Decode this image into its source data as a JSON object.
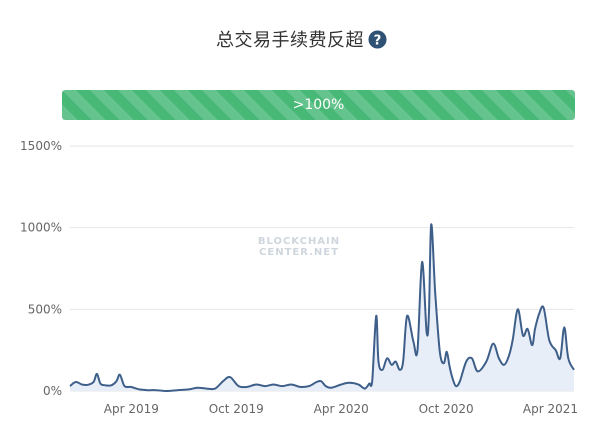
{
  "header": {
    "title": "总交易手续费反超"
  },
  "progress": {
    "label": ">100%",
    "value_percent": 100
  },
  "watermark": {
    "line1": "BLOCKCHAIN",
    "line2": "CENTER.NET"
  },
  "colors": {
    "line": "#3e5f8a",
    "area": "#e8eef7",
    "progress": "#48b877",
    "grid": "#e6e6e6"
  },
  "chart_data": {
    "type": "area",
    "title": "总交易手续费反超",
    "xlabel": "",
    "ylabel": "",
    "ylim": [
      0,
      1500
    ],
    "yticks": [
      0,
      500,
      1000,
      1500
    ],
    "ytick_labels": [
      "0%",
      "500%",
      "1000%",
      "1500%"
    ],
    "xticks": [
      "2019-04",
      "2019-10",
      "2020-04",
      "2020-10",
      "2021-04"
    ],
    "xtick_labels": [
      "Apr 2019",
      "Oct 2019",
      "Apr 2020",
      "Oct 2020",
      "Apr 2021"
    ],
    "xlim": [
      "2018-12-15",
      "2021-05-12"
    ],
    "series": [
      {
        "x": [
          "2018-12-15",
          "2018-12-25",
          "2019-01-05",
          "2019-01-15",
          "2019-01-25",
          "2019-01-31",
          "2019-02-06",
          "2019-02-15",
          "2019-02-25",
          "2019-03-06",
          "2019-03-12",
          "2019-03-20",
          "2019-03-31",
          "2019-04-15",
          "2019-05-01",
          "2019-05-15",
          "2019-06-01",
          "2019-06-20",
          "2019-07-10",
          "2019-07-25",
          "2019-08-10",
          "2019-08-25",
          "2019-09-08",
          "2019-09-20",
          "2019-10-05",
          "2019-10-20",
          "2019-11-05",
          "2019-11-20",
          "2019-12-05",
          "2019-12-20",
          "2020-01-05",
          "2020-01-20",
          "2020-02-05",
          "2020-02-18",
          "2020-02-26",
          "2020-03-05",
          "2020-03-15",
          "2020-04-01",
          "2020-04-15",
          "2020-05-01",
          "2020-05-12",
          "2020-05-20",
          "2020-05-25",
          "2020-06-01",
          "2020-06-05",
          "2020-06-12",
          "2020-06-20",
          "2020-06-28",
          "2020-07-05",
          "2020-07-12",
          "2020-07-18",
          "2020-07-25",
          "2020-08-05",
          "2020-08-12",
          "2020-08-20",
          "2020-08-28",
          "2020-09-01",
          "2020-09-05",
          "2020-09-12",
          "2020-09-20",
          "2020-09-27",
          "2020-10-02",
          "2020-10-07",
          "2020-10-12",
          "2020-10-18",
          "2020-10-25",
          "2020-11-05",
          "2020-11-15",
          "2020-11-25",
          "2020-12-10",
          "2020-12-22",
          "2021-01-01",
          "2021-01-10",
          "2021-01-18",
          "2021-01-25",
          "2021-02-03",
          "2021-02-12",
          "2021-02-20",
          "2021-02-28",
          "2021-03-05",
          "2021-03-12",
          "2021-03-20",
          "2021-03-30",
          "2021-04-10",
          "2021-04-18",
          "2021-04-25",
          "2021-05-02",
          "2021-05-12"
        ],
        "y": [
          30,
          55,
          40,
          38,
          55,
          105,
          45,
          35,
          35,
          60,
          100,
          30,
          25,
          10,
          5,
          5,
          0,
          5,
          10,
          20,
          15,
          15,
          60,
          85,
          30,
          25,
          40,
          30,
          40,
          30,
          40,
          25,
          30,
          55,
          60,
          30,
          20,
          40,
          50,
          40,
          15,
          45,
          60,
          460,
          180,
          130,
          200,
          160,
          180,
          130,
          180,
          460,
          300,
          250,
          790,
          360,
          470,
          1020,
          600,
          240,
          170,
          240,
          150,
          80,
          30,
          60,
          180,
          200,
          120,
          180,
          290,
          200,
          160,
          210,
          310,
          500,
          340,
          380,
          280,
          380,
          470,
          510,
          310,
          250,
          200,
          390,
          200,
          130
        ]
      }
    ]
  }
}
